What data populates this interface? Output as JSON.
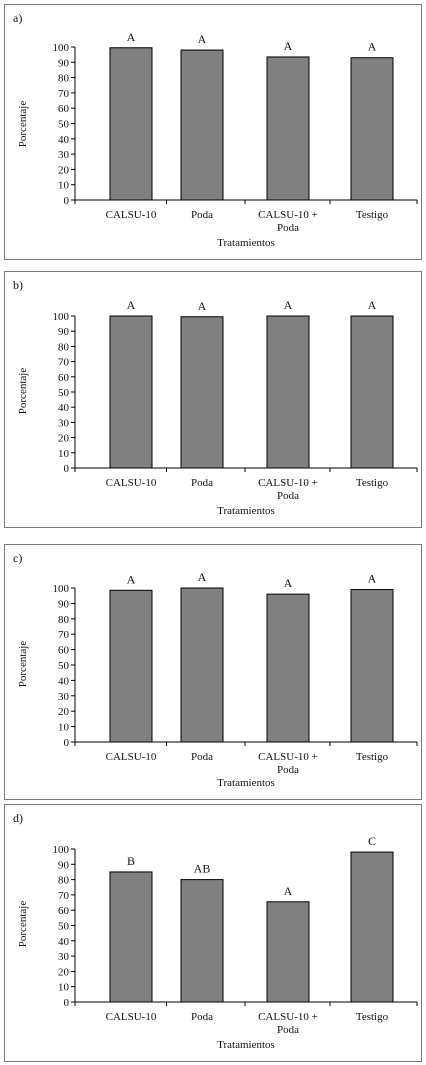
{
  "chart_data": [
    {
      "type": "bar",
      "panel_label": "a)",
      "categories": [
        "CALSU-10",
        "Poda",
        "CALSU-10 + Poda",
        "Testigo"
      ],
      "category_lines": [
        [
          "CALSU-10"
        ],
        [
          "Poda"
        ],
        [
          "CALSU-10 +",
          "Poda"
        ],
        [
          "Testigo"
        ]
      ],
      "values": [
        99.5,
        98,
        93.5,
        93
      ],
      "letters": [
        "A",
        "A",
        "A",
        "A"
      ],
      "xlabel": "Tratamientos",
      "ylabel": "Porcentaje",
      "ylim": [
        0,
        100
      ],
      "yticks": [
        0,
        10,
        20,
        30,
        40,
        50,
        60,
        70,
        80,
        90,
        100
      ],
      "bar_color": "#808080",
      "grid": false
    },
    {
      "type": "bar",
      "panel_label": "b)",
      "categories": [
        "CALSU-10",
        "Poda",
        "CALSU-10 + Poda",
        "Testigo"
      ],
      "category_lines": [
        [
          "CALSU-10"
        ],
        [
          "Poda"
        ],
        [
          "CALSU-10 +",
          "Poda"
        ],
        [
          "Testigo"
        ]
      ],
      "values": [
        100,
        99.5,
        100,
        100
      ],
      "letters": [
        "A",
        "A",
        "A",
        "A"
      ],
      "xlabel": "Tratamientos",
      "ylabel": "Porcentaje",
      "ylim": [
        0,
        100
      ],
      "yticks": [
        0,
        10,
        20,
        30,
        40,
        50,
        60,
        70,
        80,
        90,
        100
      ],
      "bar_color": "#808080",
      "grid": false
    },
    {
      "type": "bar",
      "panel_label": "c)",
      "categories": [
        "CALSU-10",
        "Poda",
        "CALSU-10 + Poda",
        "Testigo"
      ],
      "category_lines": [
        [
          "CALSU-10"
        ],
        [
          "Poda"
        ],
        [
          "CALSU-10 +",
          "Poda"
        ],
        [
          "Testigo"
        ]
      ],
      "values": [
        98.5,
        100,
        96,
        99
      ],
      "letters": [
        "A",
        "A",
        "A",
        "A"
      ],
      "xlabel": "Tratamientos",
      "ylabel": "Porcentaje",
      "ylim": [
        0,
        100
      ],
      "yticks": [
        0,
        10,
        20,
        30,
        40,
        50,
        60,
        70,
        80,
        90,
        100
      ],
      "bar_color": "#808080",
      "grid": false
    },
    {
      "type": "bar",
      "panel_label": "d)",
      "categories": [
        "CALSU-10",
        "Poda",
        "CALSU-10 + Poda",
        "Testigo"
      ],
      "category_lines": [
        [
          "CALSU-10"
        ],
        [
          "Poda"
        ],
        [
          "CALSU-10 +",
          "Poda"
        ],
        [
          "Testigo"
        ]
      ],
      "values": [
        85,
        80,
        65.5,
        98
      ],
      "letters": [
        "B",
        "AB",
        "A",
        "C"
      ],
      "xlabel": "Tratamientos",
      "ylabel": "Porcentaje",
      "ylim": [
        0,
        100
      ],
      "yticks": [
        0,
        10,
        20,
        30,
        40,
        50,
        60,
        70,
        80,
        90,
        100
      ],
      "bar_color": "#808080",
      "grid": false
    }
  ]
}
